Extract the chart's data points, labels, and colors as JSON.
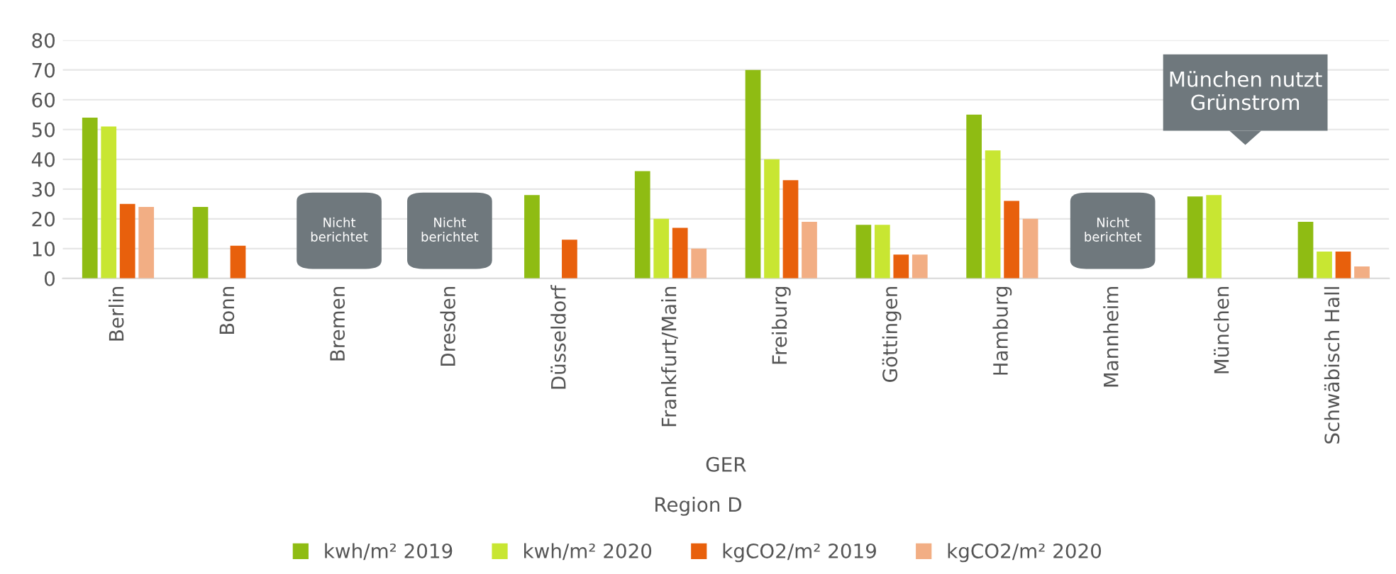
{
  "chart_data": {
    "type": "bar",
    "xlabel": "GER",
    "categories": [
      "Berlin",
      "Bonn",
      "Bremen",
      "Dresden",
      "Düsseldorf",
      "Frankfurt/Main",
      "Freiburg",
      "Göttingen",
      "Hamburg",
      "Mannheim",
      "München",
      "Schwäbisch Hall"
    ],
    "series": [
      {
        "name": "kwh/m² 2019",
        "color": "#8fbc13",
        "values": [
          54,
          24,
          null,
          null,
          28,
          36,
          70,
          18,
          55,
          null,
          27.5,
          19
        ]
      },
      {
        "name": "kwh/m² 2020",
        "color": "#c8e632",
        "values": [
          51,
          null,
          null,
          null,
          null,
          20,
          40,
          18,
          43,
          null,
          28,
          9
        ]
      },
      {
        "name": "kgCO2/m² 2019",
        "color": "#e8600c",
        "values": [
          25,
          11,
          null,
          null,
          13,
          17,
          33,
          8,
          26,
          null,
          null,
          9
        ]
      },
      {
        "name": "kgCO2/m² 2020",
        "color": "#f2ae84",
        "values": [
          24,
          null,
          null,
          null,
          null,
          10,
          19,
          8,
          20,
          null,
          null,
          4
        ]
      }
    ],
    "ylim": [
      0,
      80
    ],
    "yticks": [
      0,
      10,
      20,
      30,
      40,
      50,
      60,
      70,
      80
    ],
    "grid": "y",
    "legend": "bottom",
    "annotations": [
      "Nicht berichtet",
      "Nicht berichtet",
      "Nicht berichtet",
      "München nutzt\nGrünstrom",
      "Region D"
    ]
  }
}
